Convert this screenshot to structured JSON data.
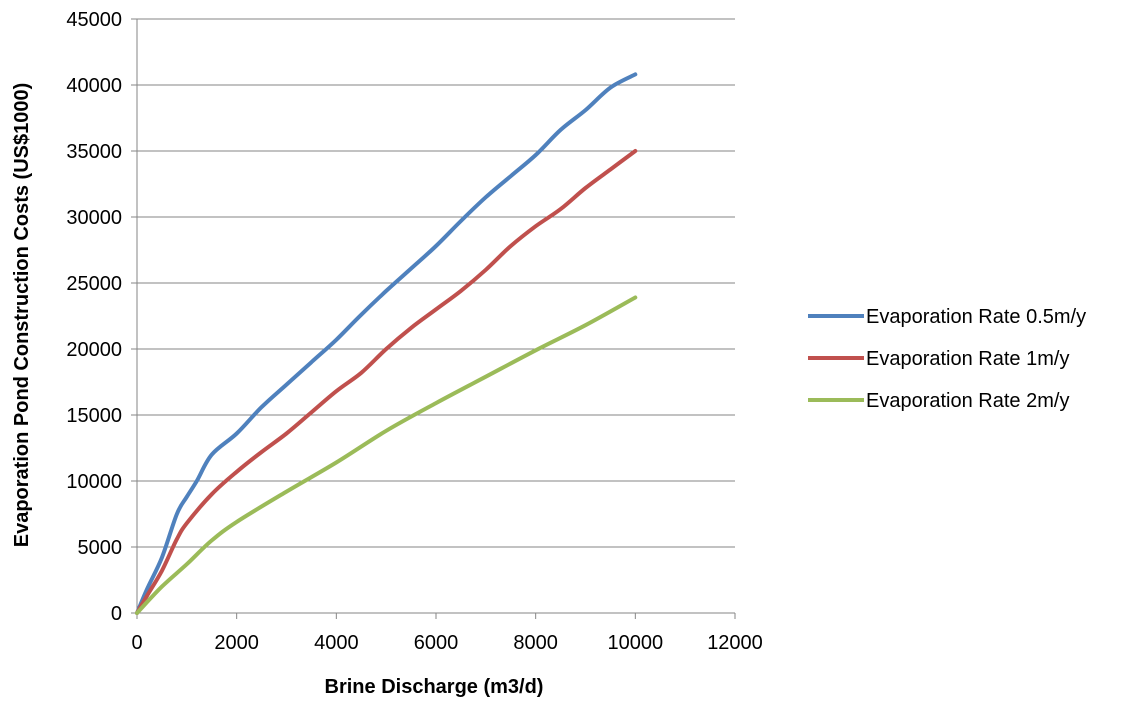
{
  "chart_data": {
    "type": "line",
    "title": "",
    "xlabel": "Brine Discharge (m3/d)",
    "ylabel": "Evaporation Pond Construction Costs (US$1000)",
    "xlim": [
      0,
      12000
    ],
    "ylim": [
      0,
      45000
    ],
    "xticks": [
      0,
      2000,
      4000,
      6000,
      8000,
      10000,
      12000
    ],
    "yticks": [
      0,
      5000,
      10000,
      15000,
      20000,
      25000,
      30000,
      35000,
      40000,
      45000
    ],
    "grid": "horizontal",
    "legend_position": "right",
    "series": [
      {
        "name": "Evaporation Rate 0.5m/y",
        "color": "#4f81bd",
        "x": [
          0,
          200,
          500,
          800,
          1000,
          1200,
          1500,
          2000,
          2500,
          3000,
          3500,
          4000,
          4500,
          5000,
          5500,
          6000,
          6500,
          7000,
          7500,
          8000,
          8500,
          9000,
          9500,
          10000
        ],
        "y": [
          0,
          1800,
          4200,
          7500,
          8800,
          10000,
          12000,
          13600,
          15600,
          17300,
          19000,
          20700,
          22600,
          24400,
          26100,
          27800,
          29700,
          31500,
          33100,
          34700,
          36600,
          38100,
          39800,
          40800
        ]
      },
      {
        "name": "Evaporation Rate 1m/y",
        "color": "#c0504d",
        "x": [
          0,
          200,
          500,
          800,
          1000,
          1500,
          2000,
          2500,
          3000,
          3500,
          4000,
          4500,
          5000,
          5500,
          6000,
          6500,
          7000,
          7500,
          8000,
          8500,
          9000,
          9500,
          10000
        ],
        "y": [
          0,
          1300,
          3200,
          5600,
          6800,
          9000,
          10700,
          12200,
          13600,
          15200,
          16800,
          18200,
          20000,
          21600,
          23000,
          24400,
          26000,
          27800,
          29300,
          30600,
          32200,
          33600,
          35000
        ]
      },
      {
        "name": "Evaporation Rate 2m/y",
        "color": "#9bbb59",
        "x": [
          0,
          500,
          1000,
          1500,
          2000,
          3000,
          4000,
          5000,
          6000,
          7000,
          8000,
          9000,
          10000
        ],
        "y": [
          0,
          2000,
          3700,
          5500,
          6900,
          9200,
          11400,
          13800,
          15900,
          17900,
          19900,
          21800,
          23900
        ]
      }
    ]
  }
}
